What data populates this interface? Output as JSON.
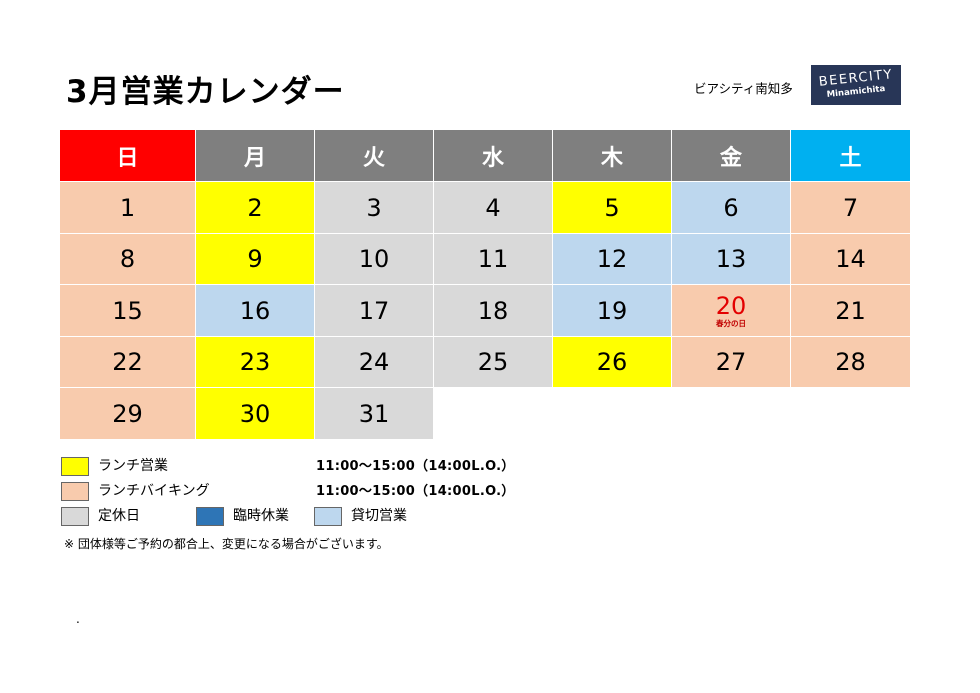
{
  "title": "3月営業カレンダー",
  "store_name": "ビアシティ南知多",
  "logo": {
    "main": "BEERCITY",
    "sub": "Minamichita",
    "background": "#283657"
  },
  "colors": {
    "sunday_header": "#ff0000",
    "weekday_header": "#7f7f7f",
    "saturday_header": "#00b0f0",
    "lunch": "#ffff00",
    "buffet": "#f8cbad",
    "closed": "#d9d9d9",
    "temporary_closed": "#2e75b6",
    "private": "#bdd7ee"
  },
  "weekdays": [
    {
      "label": "日",
      "color": "sunday_header"
    },
    {
      "label": "月",
      "color": "weekday_header"
    },
    {
      "label": "火",
      "color": "weekday_header"
    },
    {
      "label": "水",
      "color": "weekday_header"
    },
    {
      "label": "木",
      "color": "weekday_header"
    },
    {
      "label": "金",
      "color": "weekday_header"
    },
    {
      "label": "土",
      "color": "saturday_header"
    }
  ],
  "weeks": [
    [
      {
        "day": "1",
        "status": "buffet"
      },
      {
        "day": "2",
        "status": "lunch"
      },
      {
        "day": "3",
        "status": "closed"
      },
      {
        "day": "4",
        "status": "closed"
      },
      {
        "day": "5",
        "status": "lunch"
      },
      {
        "day": "6",
        "status": "private"
      },
      {
        "day": "7",
        "status": "buffet"
      }
    ],
    [
      {
        "day": "8",
        "status": "buffet"
      },
      {
        "day": "9",
        "status": "lunch"
      },
      {
        "day": "10",
        "status": "closed"
      },
      {
        "day": "11",
        "status": "closed"
      },
      {
        "day": "12",
        "status": "private"
      },
      {
        "day": "13",
        "status": "private"
      },
      {
        "day": "14",
        "status": "buffet"
      }
    ],
    [
      {
        "day": "15",
        "status": "buffet"
      },
      {
        "day": "16",
        "status": "private"
      },
      {
        "day": "17",
        "status": "closed"
      },
      {
        "day": "18",
        "status": "closed"
      },
      {
        "day": "19",
        "status": "private"
      },
      {
        "day": "20",
        "status": "buffet",
        "holiday": true,
        "note": "春分の日"
      },
      {
        "day": "21",
        "status": "buffet"
      }
    ],
    [
      {
        "day": "22",
        "status": "buffet"
      },
      {
        "day": "23",
        "status": "lunch"
      },
      {
        "day": "24",
        "status": "closed"
      },
      {
        "day": "25",
        "status": "closed"
      },
      {
        "day": "26",
        "status": "lunch"
      },
      {
        "day": "27",
        "status": "buffet"
      },
      {
        "day": "28",
        "status": "buffet"
      }
    ],
    [
      {
        "day": "29",
        "status": "buffet"
      },
      {
        "day": "30",
        "status": "lunch"
      },
      {
        "day": "31",
        "status": "closed"
      }
    ]
  ],
  "legend": {
    "lunch_label": "ランチ営業",
    "lunch_hours": "11:00～15:00（14:00L.O.）",
    "buffet_label": "ランチバイキング",
    "buffet_hours": "11:00～15:00（14:00L.O.）",
    "closed_label": "定休日",
    "temporary_closed_label": "臨時休業",
    "private_label": "貸切営業"
  },
  "footnote": "※ 団体様等ご予約の都合上、変更になる場合がございます。",
  "dot": "."
}
